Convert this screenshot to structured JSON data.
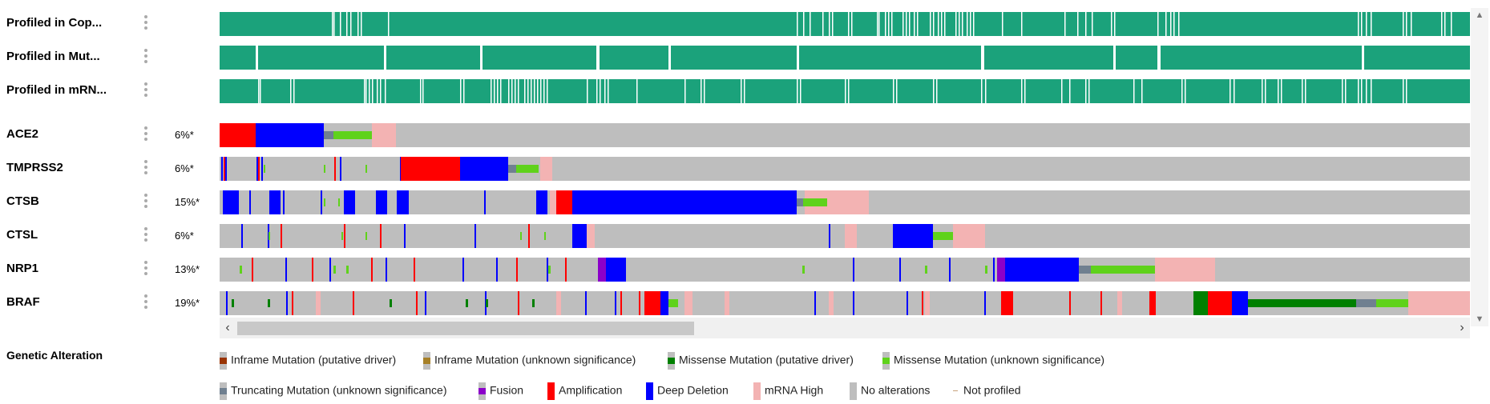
{
  "colors": {
    "profiled": "#1ba27b",
    "no_alteration": "#bebebe",
    "amplification": "#ff0000",
    "deep_deletion": "#0000ff",
    "mrna_high": "#f3b3b3",
    "missense_unknown": "#5fd21b",
    "missense_driver": "#008000",
    "truncating_unknown": "#708090",
    "fusion": "#8b00c9",
    "inframe_driver": "#993404",
    "inframe_unknown": "#a68028"
  },
  "tracks": {
    "profile": [
      {
        "label": "Profiled in Cop...",
        "menu_icon": "kebab-menu-icon"
      },
      {
        "label": "Profiled in Mut...",
        "menu_icon": "kebab-menu-icon"
      },
      {
        "label": "Profiled in mRN...",
        "menu_icon": "kebab-menu-icon"
      }
    ],
    "genes": [
      {
        "label": "ACE2",
        "percent": "6%*"
      },
      {
        "label": "TMPRSS2",
        "percent": "6%*"
      },
      {
        "label": "CTSB",
        "percent": "15%*"
      },
      {
        "label": "CTSL",
        "percent": "6%*"
      },
      {
        "label": "NRP1",
        "percent": "13%*"
      },
      {
        "label": "BRAF",
        "percent": "19%*"
      }
    ]
  },
  "scrollbar": {
    "left_arrow": "‹",
    "right_arrow": "›",
    "up_arrow": "▲",
    "down_arrow": "▼"
  },
  "legend": {
    "title": "Genetic Alteration",
    "items": [
      {
        "label": "Inframe Mutation (putative driver)",
        "color_key": "inframe_driver",
        "kind": "mutation"
      },
      {
        "label": "Inframe Mutation (unknown significance)",
        "color_key": "inframe_unknown",
        "kind": "mutation"
      },
      {
        "label": "Missense Mutation (putative driver)",
        "color_key": "missense_driver",
        "kind": "mutation"
      },
      {
        "label": "Missense Mutation (unknown significance)",
        "color_key": "missense_unknown",
        "kind": "mutation"
      },
      {
        "label": "Truncating Mutation (unknown significance)",
        "color_key": "truncating_unknown",
        "kind": "mutation"
      },
      {
        "label": "Fusion",
        "color_key": "fusion",
        "kind": "mutation"
      },
      {
        "label": "Amplification",
        "color_key": "amplification",
        "kind": "full"
      },
      {
        "label": "Deep Deletion",
        "color_key": "deep_deletion",
        "kind": "full"
      },
      {
        "label": "mRNA High",
        "color_key": "mrna_high",
        "kind": "outline"
      },
      {
        "label": "No alterations",
        "color_key": "no_alteration",
        "kind": "full"
      },
      {
        "label": "Not profiled",
        "color_key": "not_profiled",
        "kind": "dash"
      }
    ]
  }
}
